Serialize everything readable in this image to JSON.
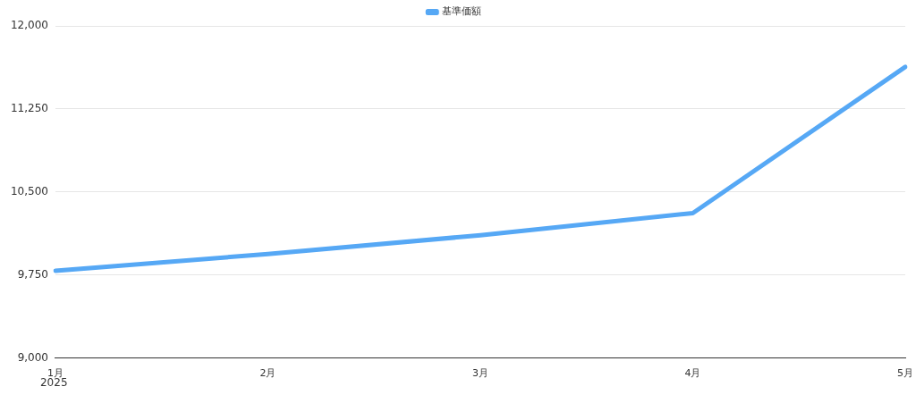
{
  "chart_data": {
    "type": "line",
    "categories": [
      "1月",
      "2月",
      "3月",
      "4月",
      "5月"
    ],
    "series": [
      {
        "name": "基準価額",
        "color": "#56a8f5",
        "values": [
          9790,
          9940,
          10110,
          10310,
          11630
        ]
      }
    ],
    "ylim": [
      9000,
      12000
    ],
    "yticks": [
      {
        "value": 9000,
        "label": "9,000"
      },
      {
        "value": 9750,
        "label": "9,750"
      },
      {
        "value": 10500,
        "label": "10,500"
      },
      {
        "value": 11250,
        "label": "11,250"
      },
      {
        "value": 12000,
        "label": "12,000"
      }
    ],
    "grid": "y",
    "legend": "top",
    "marker": "none",
    "line_style": "solid",
    "annotations": [
      "2025"
    ]
  }
}
